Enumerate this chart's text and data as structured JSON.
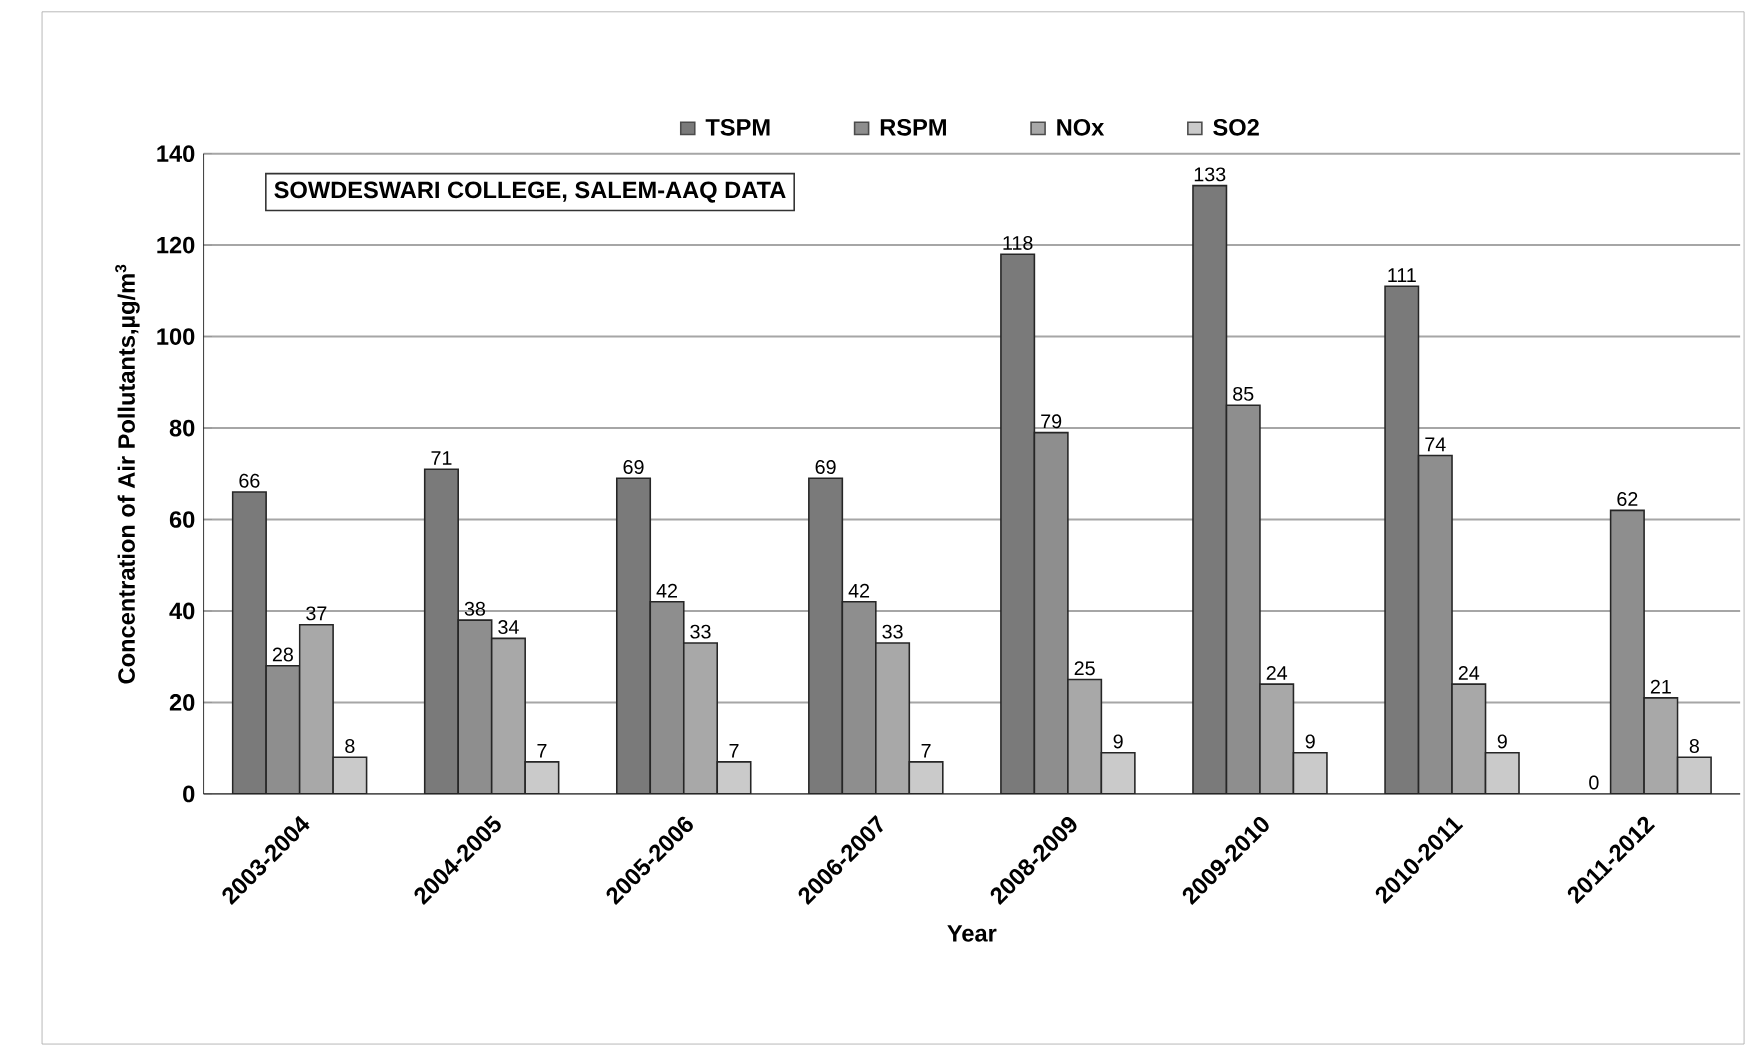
{
  "chart_data": {
    "type": "bar",
    "title": "SOWDESWARI COLLEGE, SALEM-AAQ DATA",
    "xlabel": "Year",
    "ylabel": "Concentration of Air Pollutants,µg/m$^{3}$",
    "categories": [
      "2003-2004",
      "2004-2005",
      "2005-2006",
      "2006-2007",
      "2008-2009",
      "2009-2010",
      "2010-2011",
      "2011-2012"
    ],
    "series": [
      {
        "name": "TSPM",
        "color": "#7a7a7a",
        "values": [
          66,
          71,
          69,
          69,
          118,
          133,
          111,
          0
        ]
      },
      {
        "name": "RSPM",
        "color": "#8e8e8e",
        "values": [
          28,
          38,
          42,
          42,
          79,
          85,
          74,
          62
        ]
      },
      {
        "name": "NOx",
        "color": "#a8a8a8",
        "values": [
          37,
          34,
          33,
          33,
          25,
          24,
          24,
          21
        ]
      },
      {
        "name": "SO2",
        "color": "#cacaca",
        "values": [
          8,
          7,
          7,
          7,
          9,
          9,
          9,
          8
        ]
      }
    ],
    "ylim": [
      0,
      140
    ],
    "yticks": [
      0,
      20,
      40,
      60,
      80,
      100,
      120,
      140
    ],
    "grid": "y",
    "legend": "top",
    "data_labels": true
  }
}
